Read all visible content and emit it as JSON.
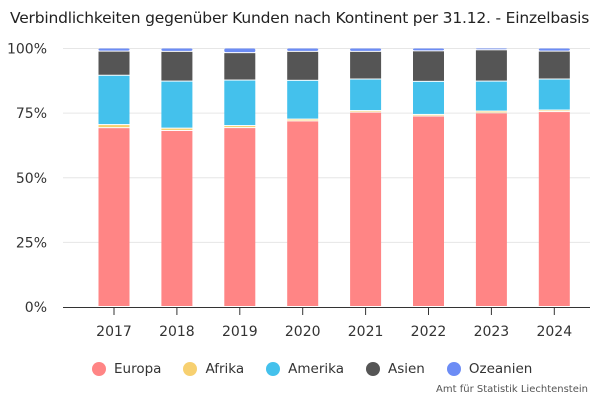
{
  "chart_data": {
    "type": "bar",
    "stacked": true,
    "normalized": true,
    "title": "Verbindlichkeiten gegenüber Kunden nach Kontinent per 31.12. - Einzelbasis",
    "xlabel": "",
    "ylabel": "",
    "ylim": [
      0,
      100
    ],
    "y_ticks": [
      "0%",
      "25%",
      "50%",
      "75%",
      "100%"
    ],
    "y_tick_values": [
      0,
      25,
      50,
      75,
      100
    ],
    "grid": true,
    "legend_position": "bottom",
    "categories": [
      "2017",
      "2018",
      "2019",
      "2020",
      "2021",
      "2022",
      "2023",
      "2024"
    ],
    "series": [
      {
        "name": "Europa",
        "color": "#FF8585",
        "values": [
          68.9,
          68.1,
          69.2,
          71.8,
          75.2,
          73.7,
          74.9,
          75.4
        ]
      },
      {
        "name": "Afrika",
        "color": "#F7D070",
        "values": [
          1.2,
          0.9,
          0.8,
          0.7,
          0.6,
          0.6,
          0.7,
          0.6
        ]
      },
      {
        "name": "Amerika",
        "color": "#44C1EC",
        "values": [
          19.0,
          18.2,
          17.6,
          15.0,
          12.2,
          12.8,
          11.6,
          12.0
        ]
      },
      {
        "name": "Asien",
        "color": "#555555",
        "values": [
          9.3,
          11.5,
          10.6,
          11.2,
          10.7,
          11.8,
          12.1,
          10.8
        ]
      },
      {
        "name": "Ozeanien",
        "color": "#6C8CF5",
        "values": [
          1.2,
          1.3,
          1.8,
          1.3,
          1.3,
          1.1,
          0.7,
          1.2
        ]
      }
    ]
  },
  "footer": {
    "source": "Amt für Statistik Liechtenstein"
  }
}
